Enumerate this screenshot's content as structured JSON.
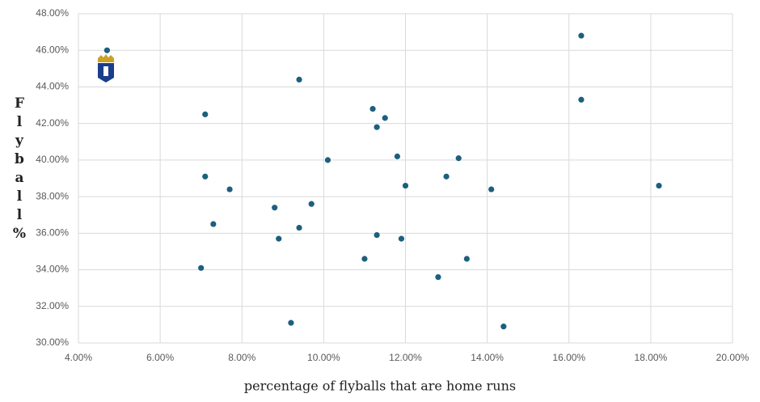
{
  "chart_data": {
    "type": "scatter",
    "x_label": "percentage of flyballs that are home runs",
    "y_label": "Flyball%",
    "color": "#1d5f7e",
    "grid": true,
    "x": [
      4.7,
      16.3,
      9.4,
      16.3,
      7.1,
      11.2,
      11.5,
      11.3,
      11.8,
      13.3,
      10.1,
      7.1,
      13.0,
      12.0,
      18.2,
      14.1,
      7.7,
      9.7,
      8.8,
      7.3,
      9.4,
      11.3,
      8.9,
      11.9,
      11.0,
      13.5,
      7.0,
      12.8,
      9.2,
      14.4
    ],
    "values": [
      46.0,
      46.8,
      44.4,
      43.3,
      42.5,
      42.8,
      42.3,
      41.8,
      40.2,
      40.1,
      40.0,
      39.1,
      39.1,
      38.6,
      38.6,
      38.4,
      38.4,
      37.6,
      37.4,
      36.5,
      36.3,
      35.9,
      35.7,
      35.7,
      34.6,
      34.6,
      34.1,
      33.6,
      31.1,
      30.9
    ],
    "xlim": [
      4,
      20
    ],
    "ylim": [
      30,
      48
    ],
    "xticks": [
      {
        "value": 4,
        "label": "4.00%"
      },
      {
        "value": 6,
        "label": "6.00%"
      },
      {
        "value": 8,
        "label": "8.00%"
      },
      {
        "value": 10,
        "label": "10.00%"
      },
      {
        "value": 12,
        "label": "12.00%"
      },
      {
        "value": 14,
        "label": "14.00%"
      },
      {
        "value": 16,
        "label": "16.00%"
      },
      {
        "value": 18,
        "label": "18.00%"
      },
      {
        "value": 20,
        "label": "20.00%"
      }
    ],
    "yticks": [
      {
        "value": 30,
        "label": "30.00%"
      },
      {
        "value": 32,
        "label": "32.00%"
      },
      {
        "value": 34,
        "label": "34.00%"
      },
      {
        "value": 36,
        "label": "36.00%"
      },
      {
        "value": 38,
        "label": "38.00%"
      },
      {
        "value": 40,
        "label": "40.00%"
      },
      {
        "value": 42,
        "label": "42.00%"
      },
      {
        "value": 44,
        "label": "44.00%"
      },
      {
        "value": 46,
        "label": "46.00%"
      },
      {
        "value": 48,
        "label": "48.00%"
      }
    ]
  }
}
